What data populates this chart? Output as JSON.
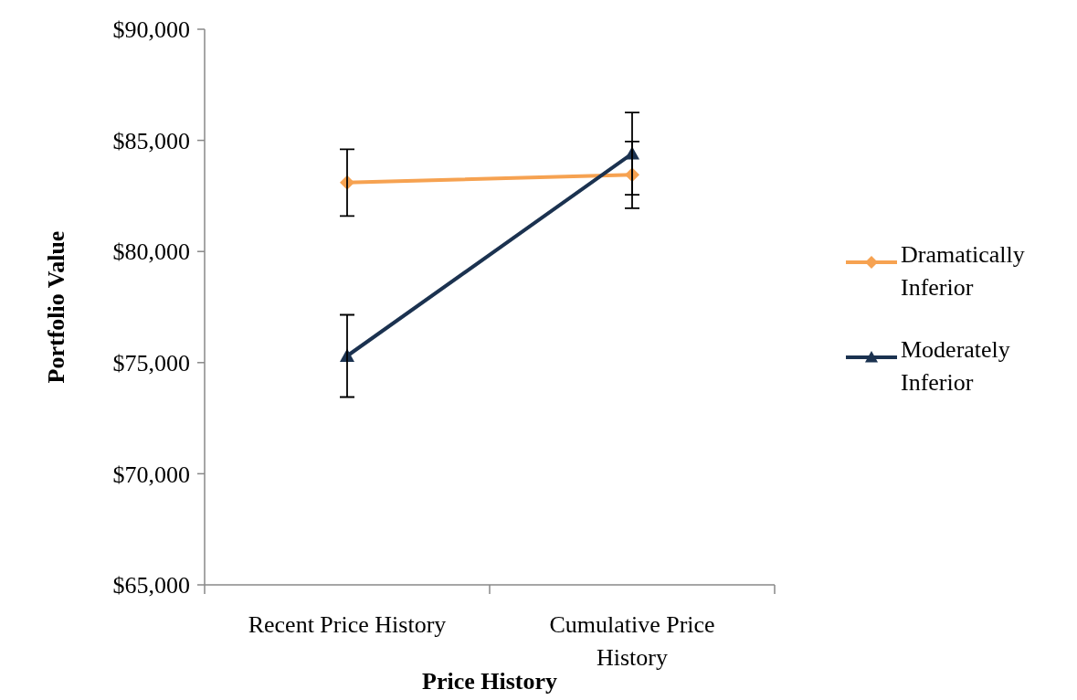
{
  "chart_data": {
    "type": "line",
    "xlabel": "Price History",
    "ylabel": "Portfolio Value",
    "categories": [
      "Recent Price History",
      "Cumulative Price History"
    ],
    "series": [
      {
        "name": "Dramatically Inferior",
        "color": "#f6a251",
        "values": [
          83100,
          83450
        ],
        "errors": [
          1500,
          1500
        ],
        "marker": "diamond"
      },
      {
        "name": "Moderately Inferior",
        "color": "#1b3250",
        "values": [
          75300,
          84400
        ],
        "errors": [
          1850,
          1850
        ],
        "marker": "triangle"
      }
    ],
    "ylim": [
      65000,
      90000
    ],
    "yticks": [
      {
        "value": 65000,
        "label": "$65,000"
      },
      {
        "value": 70000,
        "label": "$70,000"
      },
      {
        "value": 75000,
        "label": "$75,000"
      },
      {
        "value": 80000,
        "label": "$80,000"
      },
      {
        "value": 85000,
        "label": "$85,000"
      },
      {
        "value": 90000,
        "label": "$90,000"
      }
    ],
    "grid": false,
    "legend": "right",
    "line_style": "solid"
  }
}
